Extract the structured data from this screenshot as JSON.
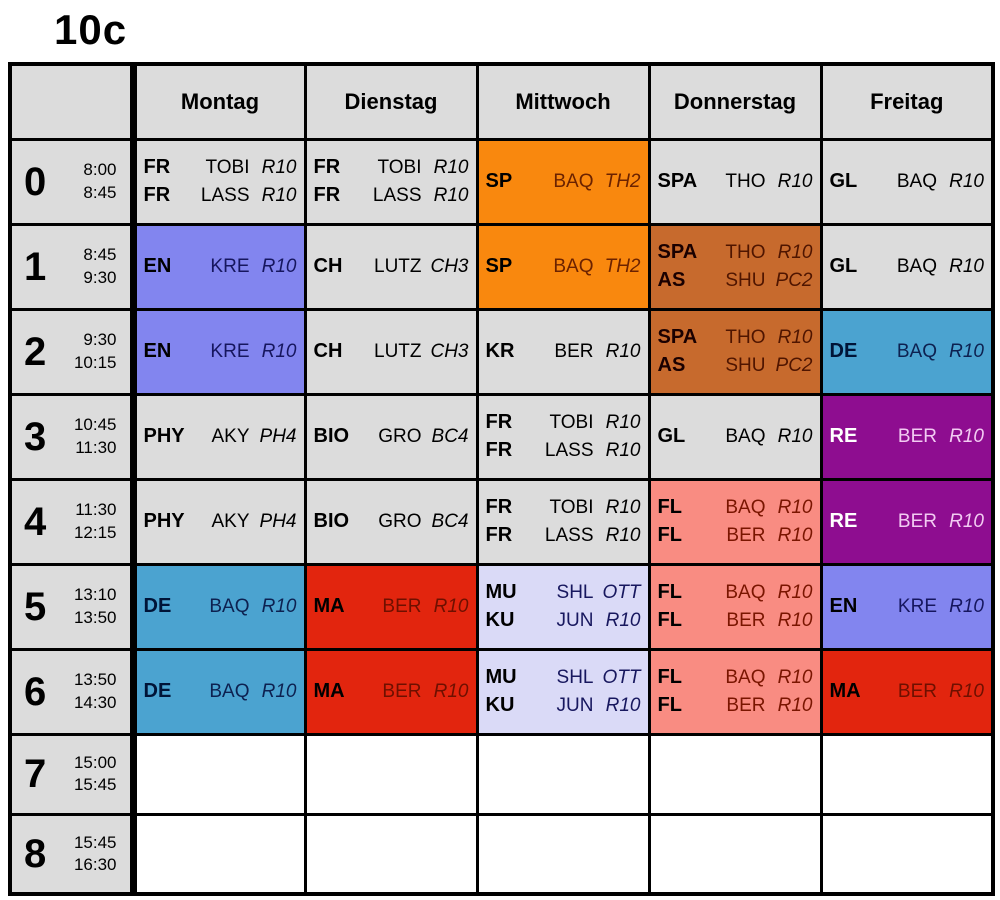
{
  "title": "10c",
  "days": [
    "Montag",
    "Dienstag",
    "Mittwoch",
    "Donnerstag",
    "Freitag"
  ],
  "periods": [
    {
      "num": "0",
      "start": "8:00",
      "end": "8:45"
    },
    {
      "num": "1",
      "start": "8:45",
      "end": "9:30"
    },
    {
      "num": "2",
      "start": "9:30",
      "end": "10:15"
    },
    {
      "num": "3",
      "start": "10:45",
      "end": "11:30"
    },
    {
      "num": "4",
      "start": "11:30",
      "end": "12:15"
    },
    {
      "num": "5",
      "start": "13:10",
      "end": "13:50"
    },
    {
      "num": "6",
      "start": "13:50",
      "end": "14:30"
    },
    {
      "num": "7",
      "start": "15:00",
      "end": "15:45"
    },
    {
      "num": "8",
      "start": "15:45",
      "end": "16:30"
    }
  ],
  "cell_styles": {
    "gray": {
      "bg": "#dcdcdc",
      "subject": "#000000",
      "text": "#000000"
    },
    "white": {
      "bg": "#ffffff",
      "subject": "#000000",
      "text": "#000000"
    },
    "orange": {
      "bg": "#f9880e",
      "subject": "#000000",
      "text": "#6b2200"
    },
    "violet": {
      "bg": "#8285ef",
      "subject": "#000000",
      "text": "#16165e"
    },
    "sienna": {
      "bg": "#c76a2d",
      "subject": "#1a0000",
      "text": "#4f1500"
    },
    "steelblue": {
      "bg": "#4ba3d0",
      "subject": "#001437",
      "text": "#0d2150"
    },
    "purple": {
      "bg": "#8e0d90",
      "subject": "#ffffff",
      "text": "#f2cbf2"
    },
    "red": {
      "bg": "#e2250e",
      "subject": "#000000",
      "text": "#6e1000"
    },
    "salmon": {
      "bg": "#f98c82",
      "subject": "#000000",
      "text": "#7a1500"
    },
    "lavender": {
      "bg": "#dadaf7",
      "subject": "#000000",
      "text": "#17175e"
    }
  },
  "grid": [
    [
      {
        "style": "gray",
        "lessons": [
          [
            "FR",
            "TOBI",
            "R10"
          ],
          [
            "FR",
            "LASS",
            "R10"
          ]
        ]
      },
      {
        "style": "gray",
        "lessons": [
          [
            "FR",
            "TOBI",
            "R10"
          ],
          [
            "FR",
            "LASS",
            "R10"
          ]
        ]
      },
      {
        "style": "orange",
        "lessons": [
          [
            "SP",
            "BAQ",
            "TH2"
          ]
        ]
      },
      {
        "style": "gray",
        "lessons": [
          [
            "SPA",
            "THO",
            "R10"
          ]
        ]
      },
      {
        "style": "gray",
        "lessons": [
          [
            "GL",
            "BAQ",
            "R10"
          ]
        ]
      }
    ],
    [
      {
        "style": "violet",
        "lessons": [
          [
            "EN",
            "KRE",
            "R10"
          ]
        ]
      },
      {
        "style": "gray",
        "lessons": [
          [
            "CH",
            "LUTZ",
            "CH3"
          ]
        ]
      },
      {
        "style": "orange",
        "lessons": [
          [
            "SP",
            "BAQ",
            "TH2"
          ]
        ]
      },
      {
        "style": "sienna",
        "lessons": [
          [
            "SPA",
            "THO",
            "R10"
          ],
          [
            "AS",
            "SHU",
            "PC2"
          ]
        ]
      },
      {
        "style": "gray",
        "lessons": [
          [
            "GL",
            "BAQ",
            "R10"
          ]
        ]
      }
    ],
    [
      {
        "style": "violet",
        "lessons": [
          [
            "EN",
            "KRE",
            "R10"
          ]
        ]
      },
      {
        "style": "gray",
        "lessons": [
          [
            "CH",
            "LUTZ",
            "CH3"
          ]
        ]
      },
      {
        "style": "gray",
        "lessons": [
          [
            "KR",
            "BER",
            "R10"
          ]
        ]
      },
      {
        "style": "sienna",
        "lessons": [
          [
            "SPA",
            "THO",
            "R10"
          ],
          [
            "AS",
            "SHU",
            "PC2"
          ]
        ]
      },
      {
        "style": "steelblue",
        "lessons": [
          [
            "DE",
            "BAQ",
            "R10"
          ]
        ]
      }
    ],
    [
      {
        "style": "gray",
        "lessons": [
          [
            "PHY",
            "AKY",
            "PH4"
          ]
        ]
      },
      {
        "style": "gray",
        "lessons": [
          [
            "BIO",
            "GRO",
            "BC4"
          ]
        ]
      },
      {
        "style": "gray",
        "lessons": [
          [
            "FR",
            "TOBI",
            "R10"
          ],
          [
            "FR",
            "LASS",
            "R10"
          ]
        ]
      },
      {
        "style": "gray",
        "lessons": [
          [
            "GL",
            "BAQ",
            "R10"
          ]
        ]
      },
      {
        "style": "purple",
        "lessons": [
          [
            "RE",
            "BER",
            "R10"
          ]
        ]
      }
    ],
    [
      {
        "style": "gray",
        "lessons": [
          [
            "PHY",
            "AKY",
            "PH4"
          ]
        ]
      },
      {
        "style": "gray",
        "lessons": [
          [
            "BIO",
            "GRO",
            "BC4"
          ]
        ]
      },
      {
        "style": "gray",
        "lessons": [
          [
            "FR",
            "TOBI",
            "R10"
          ],
          [
            "FR",
            "LASS",
            "R10"
          ]
        ]
      },
      {
        "style": "salmon",
        "lessons": [
          [
            "FL",
            "BAQ",
            "R10"
          ],
          [
            "FL",
            "BER",
            "R10"
          ]
        ]
      },
      {
        "style": "purple",
        "lessons": [
          [
            "RE",
            "BER",
            "R10"
          ]
        ]
      }
    ],
    [
      {
        "style": "steelblue",
        "lessons": [
          [
            "DE",
            "BAQ",
            "R10"
          ]
        ]
      },
      {
        "style": "red",
        "lessons": [
          [
            "MA",
            "BER",
            "R10"
          ]
        ]
      },
      {
        "style": "lavender",
        "lessons": [
          [
            "MU",
            "SHL",
            "OTT"
          ],
          [
            "KU",
            "JUN",
            "R10"
          ]
        ]
      },
      {
        "style": "salmon",
        "lessons": [
          [
            "FL",
            "BAQ",
            "R10"
          ],
          [
            "FL",
            "BER",
            "R10"
          ]
        ]
      },
      {
        "style": "violet",
        "lessons": [
          [
            "EN",
            "KRE",
            "R10"
          ]
        ]
      }
    ],
    [
      {
        "style": "steelblue",
        "lessons": [
          [
            "DE",
            "BAQ",
            "R10"
          ]
        ]
      },
      {
        "style": "red",
        "lessons": [
          [
            "MA",
            "BER",
            "R10"
          ]
        ]
      },
      {
        "style": "lavender",
        "lessons": [
          [
            "MU",
            "SHL",
            "OTT"
          ],
          [
            "KU",
            "JUN",
            "R10"
          ]
        ]
      },
      {
        "style": "salmon",
        "lessons": [
          [
            "FL",
            "BAQ",
            "R10"
          ],
          [
            "FL",
            "BER",
            "R10"
          ]
        ]
      },
      {
        "style": "red",
        "lessons": [
          [
            "MA",
            "BER",
            "R10"
          ]
        ]
      }
    ],
    [
      {
        "style": "white",
        "lessons": []
      },
      {
        "style": "white",
        "lessons": []
      },
      {
        "style": "white",
        "lessons": []
      },
      {
        "style": "white",
        "lessons": []
      },
      {
        "style": "white",
        "lessons": []
      }
    ],
    [
      {
        "style": "white",
        "lessons": []
      },
      {
        "style": "white",
        "lessons": []
      },
      {
        "style": "white",
        "lessons": []
      },
      {
        "style": "white",
        "lessons": []
      },
      {
        "style": "white",
        "lessons": []
      }
    ]
  ]
}
